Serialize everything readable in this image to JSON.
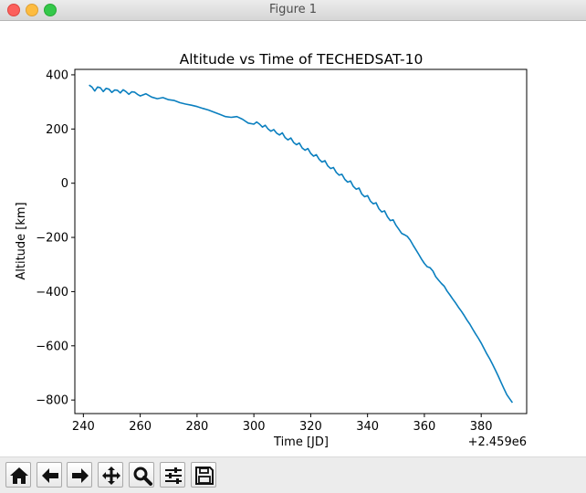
{
  "window": {
    "title": "Figure 1"
  },
  "toolbar": {
    "buttons": [
      {
        "name": "home",
        "icon": "home-icon"
      },
      {
        "name": "back",
        "icon": "arrow-left-icon"
      },
      {
        "name": "forward",
        "icon": "arrow-right-icon"
      },
      {
        "name": "pan",
        "icon": "move-icon"
      },
      {
        "name": "zoom",
        "icon": "magnifier-icon"
      },
      {
        "name": "configure-subplots",
        "icon": "sliders-icon"
      },
      {
        "name": "save",
        "icon": "floppy-disk-icon"
      }
    ]
  },
  "chart_data": {
    "type": "line",
    "title": "Altitude vs Time of TECHEDSAT-10",
    "xlabel": "Time [JD]",
    "ylabel": "Altitude [km]",
    "x_offset_label": "+2.459e6",
    "xlim": [
      237,
      396
    ],
    "ylim": [
      -850,
      420
    ],
    "x_ticks": [
      240,
      260,
      280,
      300,
      320,
      340,
      360,
      380
    ],
    "y_ticks": [
      400,
      200,
      0,
      -200,
      -400,
      -600,
      -800
    ],
    "x_tick_labels": [
      "240",
      "260",
      "280",
      "300",
      "320",
      "340",
      "360",
      "380"
    ],
    "y_tick_labels": [
      "400",
      "200",
      "0",
      "−200",
      "−400",
      "−600",
      "−800"
    ],
    "grid": false,
    "line_color": "#0a7fbf",
    "series": [
      {
        "x": [
          242,
          243,
          244,
          245,
          246,
          247,
          248,
          249,
          250,
          251,
          252,
          253,
          254,
          255,
          256,
          257,
          258,
          259,
          260,
          262,
          264,
          266,
          268,
          270,
          272,
          274,
          276,
          278,
          280,
          282,
          284,
          286,
          288,
          290,
          292,
          294,
          296,
          298,
          300,
          301,
          302,
          303,
          304,
          305,
          306,
          307,
          308,
          309,
          310,
          311,
          312,
          313,
          314,
          315,
          316,
          317,
          318,
          319,
          320,
          321,
          322,
          323,
          324,
          325,
          326,
          327,
          328,
          329,
          330,
          331,
          332,
          333,
          334,
          335,
          336,
          337,
          338,
          339,
          340,
          341,
          342,
          343,
          344,
          345,
          346,
          347,
          348,
          349,
          350,
          351,
          352,
          353,
          354,
          355,
          356,
          357,
          358,
          359,
          360,
          361,
          362,
          363,
          364,
          365,
          366,
          367,
          368,
          369,
          370,
          371,
          372,
          373,
          374,
          375,
          376,
          377,
          378,
          379,
          380,
          381,
          382,
          383,
          384,
          385,
          386,
          387,
          388,
          389,
          390,
          391
        ],
        "y": [
          362,
          355,
          340,
          355,
          352,
          338,
          350,
          347,
          335,
          344,
          343,
          333,
          345,
          338,
          328,
          337,
          336,
          328,
          322,
          330,
          318,
          312,
          316,
          308,
          305,
          297,
          292,
          288,
          283,
          276,
          270,
          262,
          254,
          246,
          243,
          246,
          236,
          222,
          218,
          226,
          218,
          207,
          214,
          200,
          192,
          198,
          185,
          178,
          186,
          168,
          160,
          167,
          150,
          142,
          148,
          130,
          122,
          128,
          110,
          100,
          105,
          88,
          78,
          83,
          64,
          54,
          58,
          40,
          30,
          33,
          14,
          4,
          8,
          -12,
          -22,
          -18,
          -40,
          -50,
          -46,
          -66,
          -76,
          -72,
          -94,
          -106,
          -102,
          -124,
          -138,
          -135,
          -155,
          -170,
          -185,
          -190,
          -196,
          -210,
          -228,
          -245,
          -262,
          -280,
          -296,
          -308,
          -312,
          -324,
          -345,
          -358,
          -370,
          -380,
          -398,
          -412,
          -428,
          -442,
          -458,
          -472,
          -488,
          -505,
          -520,
          -538,
          -556,
          -572,
          -590,
          -610,
          -630,
          -648,
          -668,
          -690,
          -712,
          -735,
          -758,
          -780,
          -795,
          -810
        ]
      }
    ]
  }
}
